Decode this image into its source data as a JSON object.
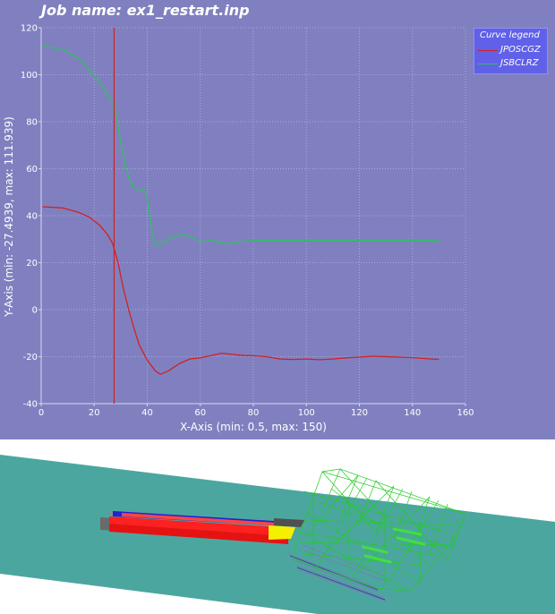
{
  "title": "Job name: ex1_restart.inp",
  "chart_data": {
    "type": "line",
    "xlabel": "X-Axis (min: 0.5, max: 150)",
    "ylabel": "Y-Axis (min: -27.4939, max: 111.939)",
    "xlim": [
      0,
      160
    ],
    "ylim": [
      -40,
      120
    ],
    "xticks": [
      0,
      20,
      40,
      60,
      80,
      100,
      120,
      140,
      160
    ],
    "yticks": [
      -40,
      -20,
      0,
      20,
      40,
      60,
      80,
      100,
      120
    ],
    "grid": true,
    "legend": {
      "title": "Curve legend",
      "position": "top-right"
    },
    "cursor_x": 27.5,
    "series": [
      {
        "name": "JPOSCGZ",
        "color": "#d42020",
        "x": [
          0.5,
          8,
          14,
          18,
          22,
          25,
          27,
          29,
          31,
          33,
          35,
          37,
          40,
          43,
          45,
          48,
          52,
          56,
          60,
          64,
          68,
          72,
          76,
          80,
          85,
          90,
          95,
          100,
          105,
          110,
          115,
          120,
          125,
          130,
          135,
          140,
          145,
          150
        ],
        "y": [
          43.8,
          43.3,
          41.5,
          39.5,
          36,
          32,
          28,
          20,
          9,
          0,
          -8,
          -15,
          -21.5,
          -26,
          -27.5,
          -26,
          -23,
          -21,
          -20.5,
          -19.5,
          -18.5,
          -19,
          -19.5,
          -19.6,
          -20,
          -21,
          -21.2,
          -21,
          -21.3,
          -21,
          -20.5,
          -20.2,
          -19.8,
          -20,
          -20.2,
          -20.4,
          -20.8,
          -21.2
        ]
      },
      {
        "name": "JSBCLRZ",
        "color": "#30c060",
        "x": [
          0.5,
          5,
          10,
          15,
          18,
          21,
          24,
          26,
          27.5,
          29,
          31,
          33,
          35,
          37,
          39,
          40,
          41,
          42,
          43,
          44,
          46,
          48,
          50,
          53,
          56,
          60,
          65,
          70,
          75,
          80,
          90,
          100,
          110,
          120,
          130,
          140,
          150
        ],
        "y": [
          111.9,
          111.5,
          110,
          106,
          102,
          98,
          93.5,
          90,
          87,
          78,
          65,
          56,
          52,
          51,
          50.5,
          47,
          40,
          32,
          28,
          27.5,
          28.5,
          30,
          31,
          32,
          31,
          29,
          29.5,
          28,
          29,
          29.5,
          29.5,
          29.5,
          29.5,
          29.5,
          29.5,
          29.5,
          29.5
        ]
      }
    ]
  }
}
